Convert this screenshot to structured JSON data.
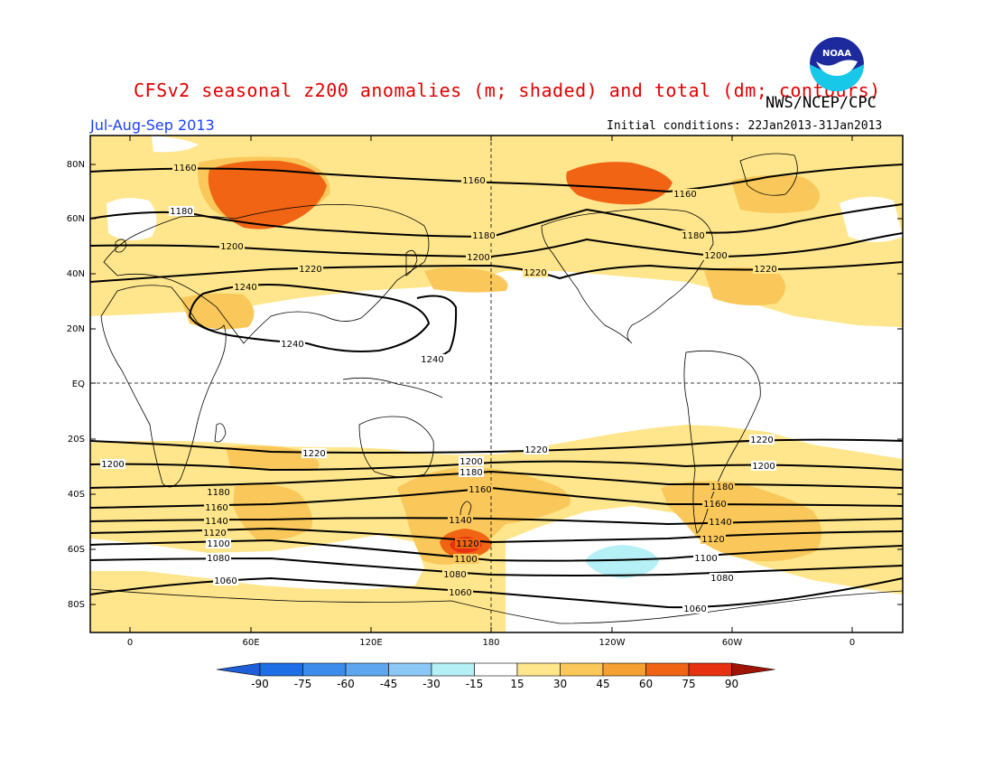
{
  "title": "CFSv2 seasonal z200 anomalies (m; shaded) and total (dm; contours)",
  "agency": "NWS/NCEP/CPC",
  "period": "Jul-Aug-Sep 2013",
  "initial_conditions": "Initial conditions: 22Jan2013-31Jan2013",
  "logo_text": "NOAA",
  "lat_labels": [
    "80N",
    "60N",
    "40N",
    "20N",
    "EQ",
    "20S",
    "40S",
    "60S",
    "80S"
  ],
  "lon_labels": [
    "0",
    "60E",
    "120E",
    "180",
    "120W",
    "60W",
    "0"
  ],
  "colorbar": {
    "labels": [
      "-90",
      "-75",
      "-60",
      "-45",
      "-30",
      "-15",
      "15",
      "30",
      "45",
      "60",
      "75",
      "90"
    ],
    "colors": [
      "#1e6ee6",
      "#3c8ceb",
      "#5ea6ef",
      "#8cc8f5",
      "#b4f0f5",
      "#ffffff",
      "#ffe68c",
      "#fac85a",
      "#f5a032",
      "#f06414",
      "#e63210",
      "#be1e0a"
    ],
    "low_end": "#1e5fd7",
    "high_end": "#a01408"
  },
  "colors": {
    "weak_pos": "#ffe68c",
    "mod_pos": "#fac85a",
    "strong_pos": "#f06414",
    "very_strong_pos": "#e63210",
    "weak_neg": "#b4f0f5",
    "neutral": "#ffffff"
  },
  "contour_labels": {
    "1060": "1060",
    "1080": "1080",
    "1100": "1100",
    "1120": "1120",
    "1140": "1140",
    "1160": "1160",
    "1180": "1180",
    "1200": "1200",
    "1220": "1220",
    "1240": "1240"
  }
}
